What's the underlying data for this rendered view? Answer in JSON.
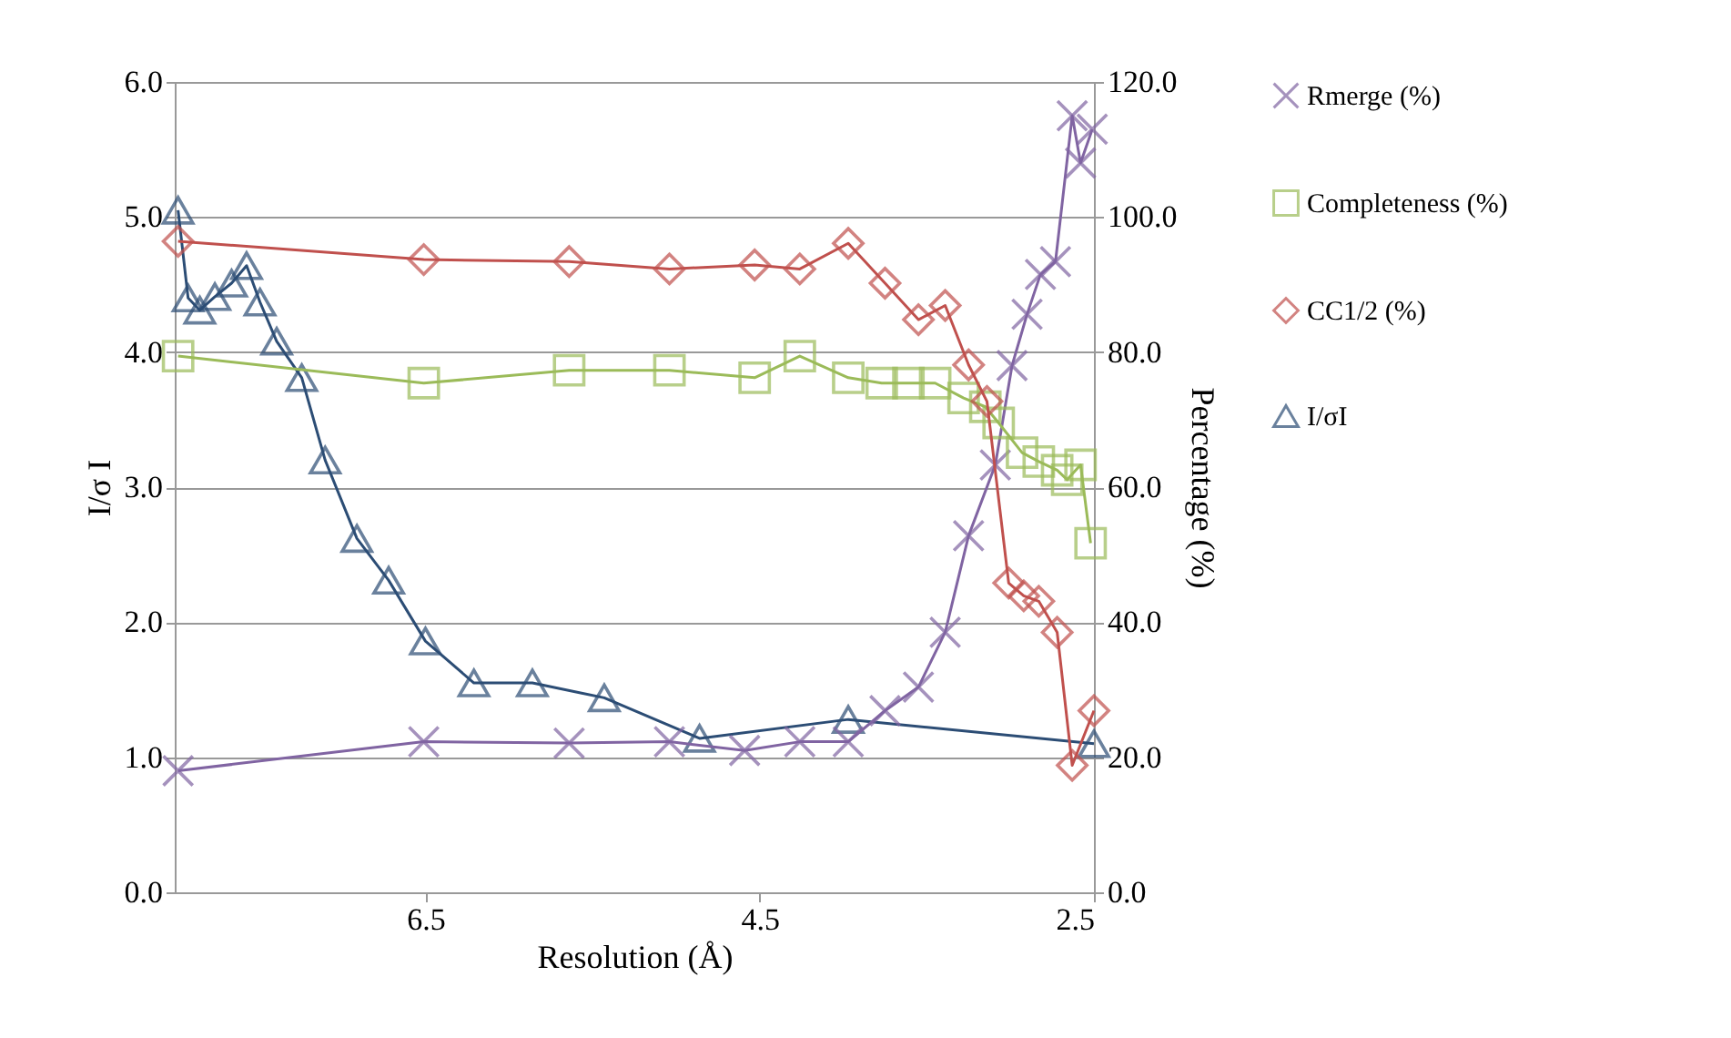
{
  "chart_data": {
    "type": "line",
    "xlabel": "Resolution (Å)",
    "ylabel": "I/σ I",
    "y2label": "Percentage (%)",
    "xlim": [
      8.0,
      2.5
    ],
    "xticks": [
      6.5,
      4.5,
      2.5
    ],
    "ylim": [
      0,
      6
    ],
    "yticks": [
      {
        "value": 0,
        "label": "0.0"
      },
      {
        "value": 1,
        "label": "1.0"
      },
      {
        "value": 2,
        "label": "2.0"
      },
      {
        "value": 3,
        "label": "3.0"
      },
      {
        "value": 4,
        "label": "4.0"
      },
      {
        "value": 5,
        "label": "5.0"
      },
      {
        "value": 6,
        "label": "6.0"
      }
    ],
    "y2lim": [
      0,
      120
    ],
    "y2ticks": [
      {
        "value": 0,
        "label": "0.0"
      },
      {
        "value": 20,
        "label": "20.0"
      },
      {
        "value": 40,
        "label": "40.0"
      },
      {
        "value": 60,
        "label": "60.0"
      },
      {
        "value": 80,
        "label": "80.0"
      },
      {
        "value": 100,
        "label": "100.0"
      },
      {
        "value": 120,
        "label": "120.0"
      }
    ],
    "grid": "y",
    "legend": "right",
    "line_style": "solid",
    "series": [
      {
        "name": "Rmerge (%)",
        "color": "#8064a2",
        "axis": "y2",
        "marker": "cross",
        "x": [
          7.98,
          6.51,
          5.64,
          5.04,
          4.59,
          4.26,
          3.97,
          3.75,
          3.55,
          3.39,
          3.25,
          3.09,
          2.99,
          2.9,
          2.82,
          2.73,
          2.63,
          2.58,
          2.51
        ],
        "values": [
          18.0,
          22.3,
          22.1,
          22.3,
          21.0,
          22.3,
          22.3,
          26.9,
          30.4,
          38.5,
          52.8,
          63.3,
          78,
          85.6,
          91.5,
          93.4,
          115,
          108,
          113
        ]
      },
      {
        "name": "Completeness (%)",
        "color": "#9bbb59",
        "axis": "y2",
        "marker": "square",
        "x": [
          7.98,
          6.51,
          5.64,
          5.04,
          4.53,
          4.26,
          3.97,
          3.77,
          3.61,
          3.45,
          3.28,
          3.15,
          3.07,
          2.93,
          2.83,
          2.72,
          2.66,
          2.58,
          2.52
        ],
        "values": [
          79.4,
          75.4,
          77.3,
          77.3,
          76.2,
          79.4,
          76.2,
          75.4,
          75.4,
          75.4,
          73.2,
          71.9,
          69.5,
          65.1,
          63.8,
          62.5,
          61.1,
          63.3,
          51.7
        ]
      },
      {
        "name": "CC1/2 (%)",
        "color": "#c0504d",
        "axis": "y2",
        "marker": "diamond",
        "x": [
          7.98,
          6.51,
          5.64,
          5.04,
          4.53,
          4.26,
          3.97,
          3.75,
          3.55,
          3.39,
          3.25,
          3.14,
          3.01,
          2.92,
          2.83,
          2.72,
          2.63,
          2.5
        ],
        "values": [
          96.4,
          93.7,
          93.4,
          92.3,
          92.9,
          92.3,
          96.1,
          90.2,
          84.8,
          86.9,
          78.1,
          72.7,
          45.8,
          43.9,
          43.1,
          38.5,
          18.8,
          26.9
        ]
      },
      {
        "name": "I/σI",
        "color": "#2c4d75",
        "axis": "y",
        "marker": "triangle",
        "x": [
          7.98,
          7.92,
          7.85,
          7.76,
          7.66,
          7.57,
          7.49,
          7.39,
          7.24,
          7.1,
          6.91,
          6.72,
          6.5,
          6.21,
          5.86,
          5.43,
          4.86,
          3.97,
          2.5
        ],
        "values": [
          5.05,
          4.4,
          4.31,
          4.41,
          4.51,
          4.64,
          4.37,
          4.08,
          3.81,
          3.2,
          2.62,
          2.31,
          1.86,
          1.55,
          1.55,
          1.44,
          1.14,
          1.28,
          1.1
        ]
      }
    ]
  }
}
